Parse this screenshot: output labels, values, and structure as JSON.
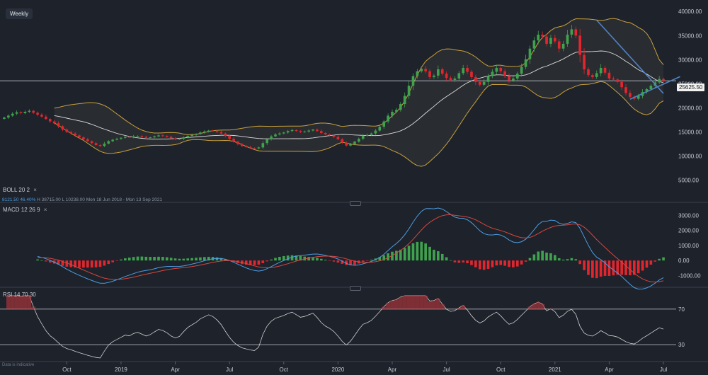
{
  "timeframe": "Weekly",
  "price_tag": "25625.50",
  "boll": {
    "label": "BOLL",
    "p1": "20",
    "p2": "2",
    "close_glyph": "×",
    "info_a": "8121.50",
    "info_b": "46.40%",
    "info_h": "H 38715.00",
    "info_l": "L 10238.00",
    "info_range": "Mon 18 Jun 2018 - Mon 13 Sep 2021"
  },
  "macd": {
    "label": "MACD",
    "p1": "12",
    "p2": "26",
    "p3": "9",
    "close_glyph": "×"
  },
  "rsi": {
    "label": "RSI",
    "p1": "14",
    "p2": "70",
    "p3": "30"
  },
  "disclaimer": "Data is indicative",
  "colors": {
    "up": "#3fa34d",
    "down": "#e3262e",
    "band": "#c9a03c",
    "mid": "#dcdcdc",
    "trend": "#4f83c4",
    "macd": "#4d9de0",
    "signal": "#d9463f",
    "rsi": "#d0d0d0"
  },
  "chart_data": [
    {
      "type": "candlestick",
      "title": "",
      "price_axis": {
        "ticks": [
          5000,
          10000,
          15000,
          20000,
          25000,
          30000,
          35000,
          40000
        ],
        "tick_labels": [
          "5000.00",
          "10000.00",
          "15000.00",
          "20000.00",
          "25000.00",
          "30000.00",
          "35000.00",
          "40000.00"
        ],
        "ylim": [
          1000,
          41500
        ]
      },
      "x_axis": {
        "tick_labels": [
          "Oct",
          "2019",
          "Apr",
          "Jul",
          "Oct",
          "2020",
          "Apr",
          "Jul",
          "Oct",
          "2021",
          "Apr",
          "Jul"
        ]
      },
      "last_close": 25625.5,
      "close_series": [
        18000,
        18400,
        18800,
        19100,
        18900,
        19200,
        19400,
        19000,
        18600,
        18200,
        17700,
        17200,
        16800,
        16200,
        15500,
        15000,
        14700,
        14300,
        13900,
        13500,
        13100,
        12700,
        12300,
        12100,
        12600,
        13100,
        13400,
        13600,
        13800,
        14000,
        13900,
        14100,
        14200,
        14000,
        13800,
        13900,
        14100,
        14300,
        14200,
        14000,
        13700,
        13500,
        13600,
        13900,
        14200,
        14400,
        14600,
        14900,
        15100,
        15300,
        15200,
        15000,
        14700,
        14200,
        13600,
        13000,
        12500,
        12100,
        11900,
        11700,
        11600,
        11800,
        12700,
        13500,
        14100,
        14500,
        14700,
        14900,
        15200,
        15400,
        15200,
        15000,
        15100,
        15300,
        15500,
        15200,
        14800,
        14500,
        14300,
        14000,
        13500,
        12800,
        12200,
        12500,
        13000,
        13600,
        14200,
        14400,
        14700,
        15300,
        16100,
        17200,
        18400,
        19200,
        19600,
        20800,
        22500,
        24600,
        26600,
        27600,
        28100,
        27600,
        26400,
        26700,
        28000,
        27100,
        26200,
        25800,
        26100,
        27200,
        28300,
        27500,
        26400,
        25400,
        24800,
        25400,
        26600,
        27500,
        28300,
        27600,
        26600,
        25700,
        26100,
        27100,
        28500,
        30100,
        32300,
        34000,
        35200,
        34800,
        33300,
        34500,
        33800,
        32300,
        33300,
        35200,
        36300,
        35000,
        31000,
        28000,
        26800,
        26400,
        27200,
        28300,
        27300,
        26100,
        25900,
        25400,
        24300,
        23100,
        22300,
        21900,
        22500,
        23300,
        23900,
        24600,
        25300,
        26000,
        25625.5
      ],
      "bollinger": {
        "period": 20,
        "stddev": 2
      },
      "trendlines": [
        {
          "from": {
            "index": 142,
            "price": 38200
          },
          "to": {
            "index": 158,
            "price": 23000
          }
        },
        {
          "from": {
            "index": 150,
            "price": 21800
          },
          "to": {
            "index": 162,
            "price": 26500
          }
        }
      ]
    },
    {
      "type": "macd",
      "params": [
        12,
        26,
        9
      ],
      "y_axis": {
        "ticks": [
          -1000,
          0,
          1000,
          2000,
          3000
        ],
        "tick_labels": [
          "-1000.00",
          "0.00",
          "1000.00",
          "2000.00",
          "3000.00"
        ],
        "ylim": [
          -1500,
          3400
        ]
      }
    },
    {
      "type": "rsi",
      "period": 14,
      "levels": [
        70,
        30
      ],
      "level_labels": [
        "70",
        "30"
      ],
      "ylim": [
        15,
        85
      ]
    }
  ]
}
